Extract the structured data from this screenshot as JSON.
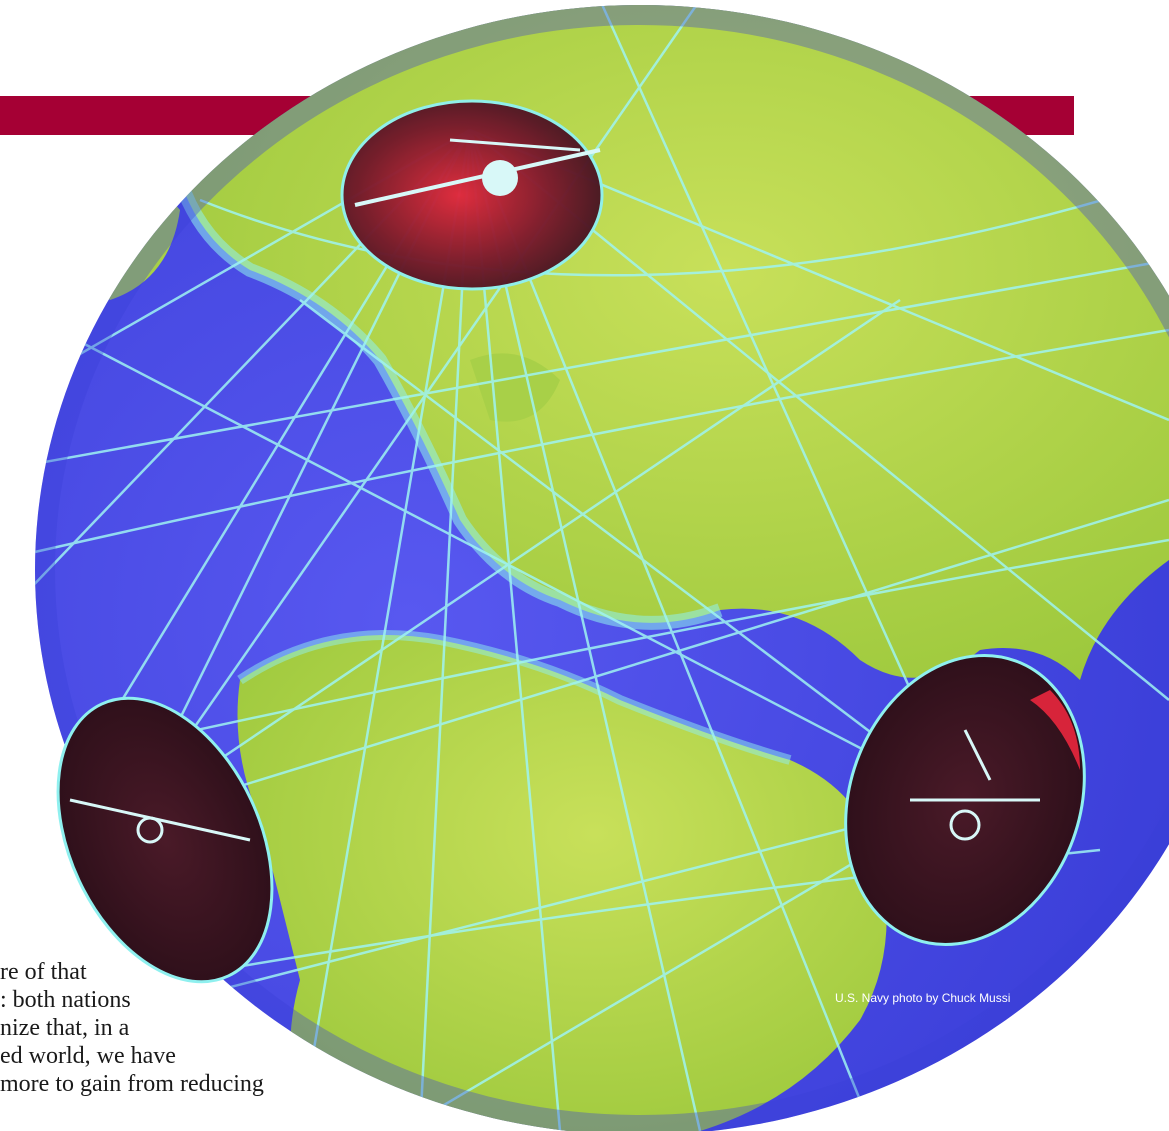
{
  "colors": {
    "header_bar": "#a50034",
    "ocean": "#4a4ee6",
    "land": "#b6d94a",
    "network_lines": "#8ff0ef",
    "dish_dark": "#3a1420",
    "dish_red": "#d7243a"
  },
  "body_text": {
    "lines": [
      "re of that",
      ": both nations",
      "nize that, in a",
      "ed world, we have",
      "more to gain from reducing"
    ]
  },
  "photo": {
    "credit": "U.S. Navy photo by Chuck Mussi",
    "icons": [
      "globe-image",
      "satellite-dish-icon"
    ]
  }
}
